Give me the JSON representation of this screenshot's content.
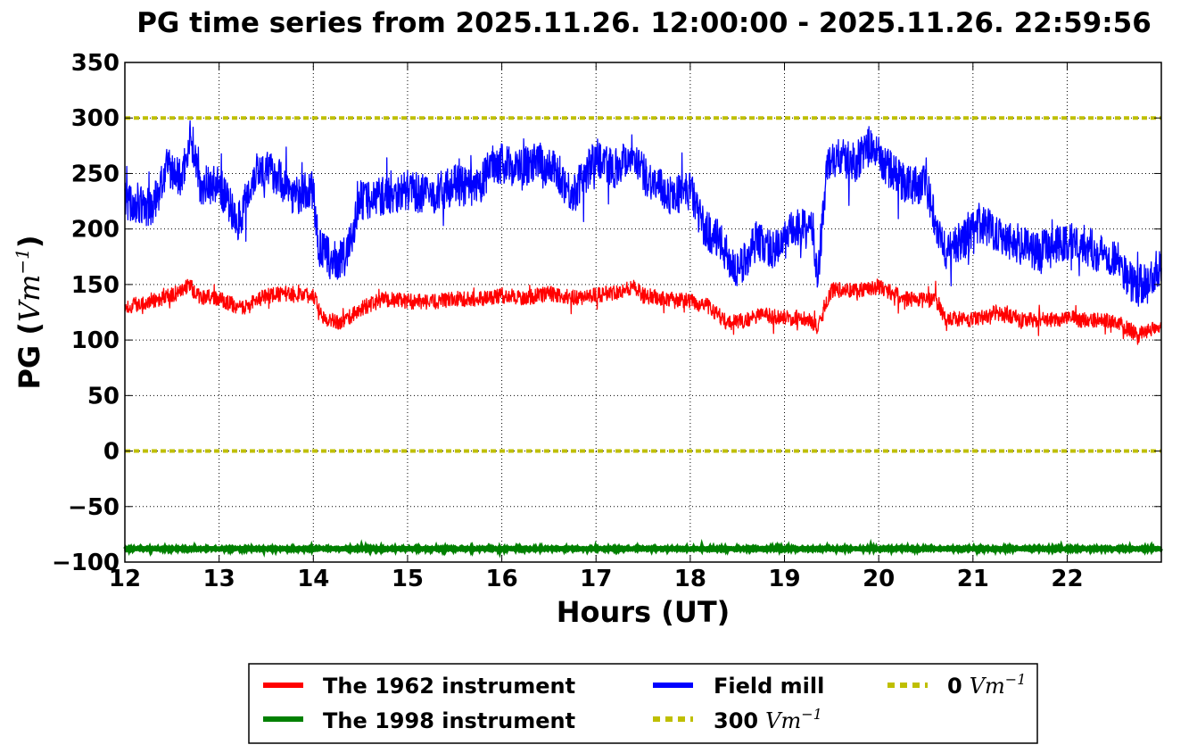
{
  "chart_data": {
    "type": "line",
    "title": "PG time series from 2025.11.26. 12:00:00 - 2025.11.26. 22:59:56",
    "xlabel": "Hours (UT)",
    "ylabel": "PG (",
    "ylabel_unit": "Vm",
    "ylabel_exp": "−1",
    "ylabel_close": ")",
    "xlim": [
      12,
      22.999
    ],
    "ylim": [
      -100,
      350
    ],
    "xticks": [
      12,
      13,
      14,
      15,
      16,
      17,
      18,
      19,
      20,
      21,
      22
    ],
    "xtick_labels": [
      "12",
      "13",
      "14",
      "15",
      "16",
      "17",
      "18",
      "19",
      "20",
      "21",
      "22"
    ],
    "yticks": [
      -100,
      -50,
      0,
      50,
      100,
      150,
      200,
      250,
      300,
      350
    ],
    "ytick_labels": [
      "−100",
      "−50",
      "0",
      "50",
      "100",
      "150",
      "200",
      "250",
      "300",
      "350"
    ],
    "grid": true,
    "legend_position": "bottom-center (below plot)",
    "series": [
      {
        "name": "The 1962 instrument",
        "color": "#ff0000",
        "style": "solid",
        "x": [
          12.0,
          12.25,
          12.5,
          12.7,
          12.75,
          13.0,
          13.25,
          13.5,
          13.75,
          14.0,
          14.1,
          14.3,
          14.5,
          14.75,
          15.0,
          15.25,
          15.5,
          15.75,
          16.0,
          16.25,
          16.5,
          16.75,
          17.0,
          17.25,
          17.4,
          17.5,
          17.75,
          18.0,
          18.2,
          18.4,
          18.6,
          18.75,
          19.0,
          19.25,
          19.35,
          19.5,
          19.75,
          20.0,
          20.25,
          20.5,
          20.6,
          20.7,
          21.0,
          21.25,
          21.5,
          21.75,
          22.0,
          22.25,
          22.5,
          22.75,
          23.0
        ],
        "values": [
          130,
          135,
          140,
          150,
          140,
          137,
          128,
          140,
          142,
          140,
          122,
          115,
          128,
          137,
          135,
          134,
          137,
          137,
          140,
          138,
          142,
          138,
          140,
          144,
          148,
          140,
          137,
          135,
          130,
          115,
          118,
          123,
          120,
          120,
          110,
          145,
          145,
          148,
          138,
          135,
          138,
          120,
          118,
          125,
          118,
          118,
          120,
          117,
          118,
          104,
          115
        ]
      },
      {
        "name": "The 1998 instrument",
        "color": "#008000",
        "style": "solid",
        "x": [
          12.0,
          23.0
        ],
        "values": [
          -88,
          -88
        ]
      },
      {
        "name": "Field mill",
        "color": "#0000ff",
        "style": "solid",
        "x": [
          12.0,
          12.15,
          12.3,
          12.45,
          12.6,
          12.7,
          12.8,
          13.0,
          13.2,
          13.4,
          13.6,
          13.8,
          14.0,
          14.05,
          14.2,
          14.35,
          14.5,
          14.75,
          15.0,
          15.25,
          15.5,
          15.75,
          15.9,
          16.2,
          16.4,
          16.6,
          16.75,
          17.0,
          17.2,
          17.4,
          17.5,
          17.7,
          17.8,
          18.0,
          18.15,
          18.3,
          18.5,
          18.7,
          18.9,
          19.1,
          19.3,
          19.35,
          19.45,
          19.55,
          19.75,
          19.9,
          20.1,
          20.3,
          20.5,
          20.6,
          20.7,
          20.9,
          21.1,
          21.3,
          21.5,
          21.7,
          21.9,
          22.1,
          22.3,
          22.5,
          22.7,
          22.85,
          23.0
        ],
        "values": [
          225,
          220,
          220,
          255,
          245,
          285,
          240,
          240,
          205,
          255,
          250,
          230,
          235,
          185,
          170,
          175,
          225,
          230,
          235,
          230,
          240,
          235,
          260,
          255,
          260,
          250,
          230,
          265,
          255,
          270,
          250,
          235,
          230,
          235,
          200,
          190,
          160,
          190,
          180,
          200,
          200,
          155,
          255,
          265,
          260,
          275,
          255,
          240,
          240,
          210,
          180,
          190,
          205,
          195,
          185,
          180,
          185,
          190,
          180,
          175,
          150,
          150,
          170
        ]
      },
      {
        "name": "300 Vm−1",
        "label_number": "300",
        "color": "#bfbf00",
        "style": "dotted",
        "x": [
          12.0,
          23.0
        ],
        "values": [
          300,
          300
        ]
      },
      {
        "name": "0 Vm−1",
        "label_number": "0",
        "color": "#bfbf00",
        "style": "dotted",
        "x": [
          12.0,
          23.0
        ],
        "values": [
          0,
          0
        ]
      }
    ],
    "legend_unit": "Vm",
    "legend_unit_exp": "−1"
  }
}
